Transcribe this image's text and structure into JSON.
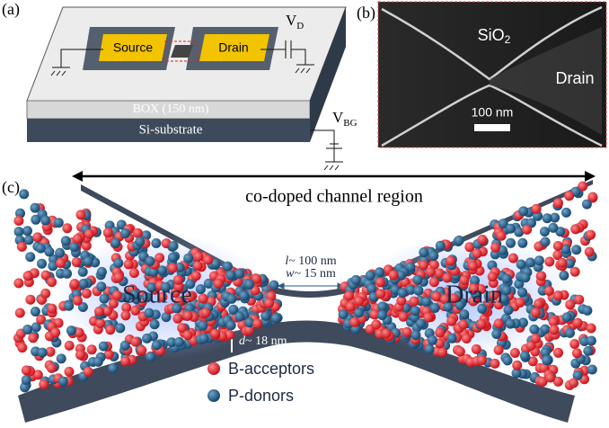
{
  "panel_a": {
    "label": "(a)",
    "source": "Source",
    "drain": "Drain",
    "vd": {
      "base": "V",
      "sub": "D"
    },
    "box": "BOX (150 nm)",
    "substrate": "Si-substrate",
    "vbg": {
      "base": "V",
      "sub": "BG"
    }
  },
  "panel_b": {
    "label": "(b)",
    "sio2": {
      "base": "SiO",
      "sub": "2"
    },
    "drain": "Drain",
    "scale": "100 nm"
  },
  "panel_c": {
    "label": "(c)",
    "region": "co-doped channel region",
    "length": {
      "symbol": "l",
      "text": "~ 100 nm"
    },
    "width": {
      "symbol": "w",
      "text": "~ 15 nm"
    },
    "source": "Source",
    "drain": "Drain",
    "depth": {
      "symbol": "d",
      "text": "~ 18 nm"
    },
    "legend": [
      "B-acceptors",
      "P-donors"
    ]
  }
}
